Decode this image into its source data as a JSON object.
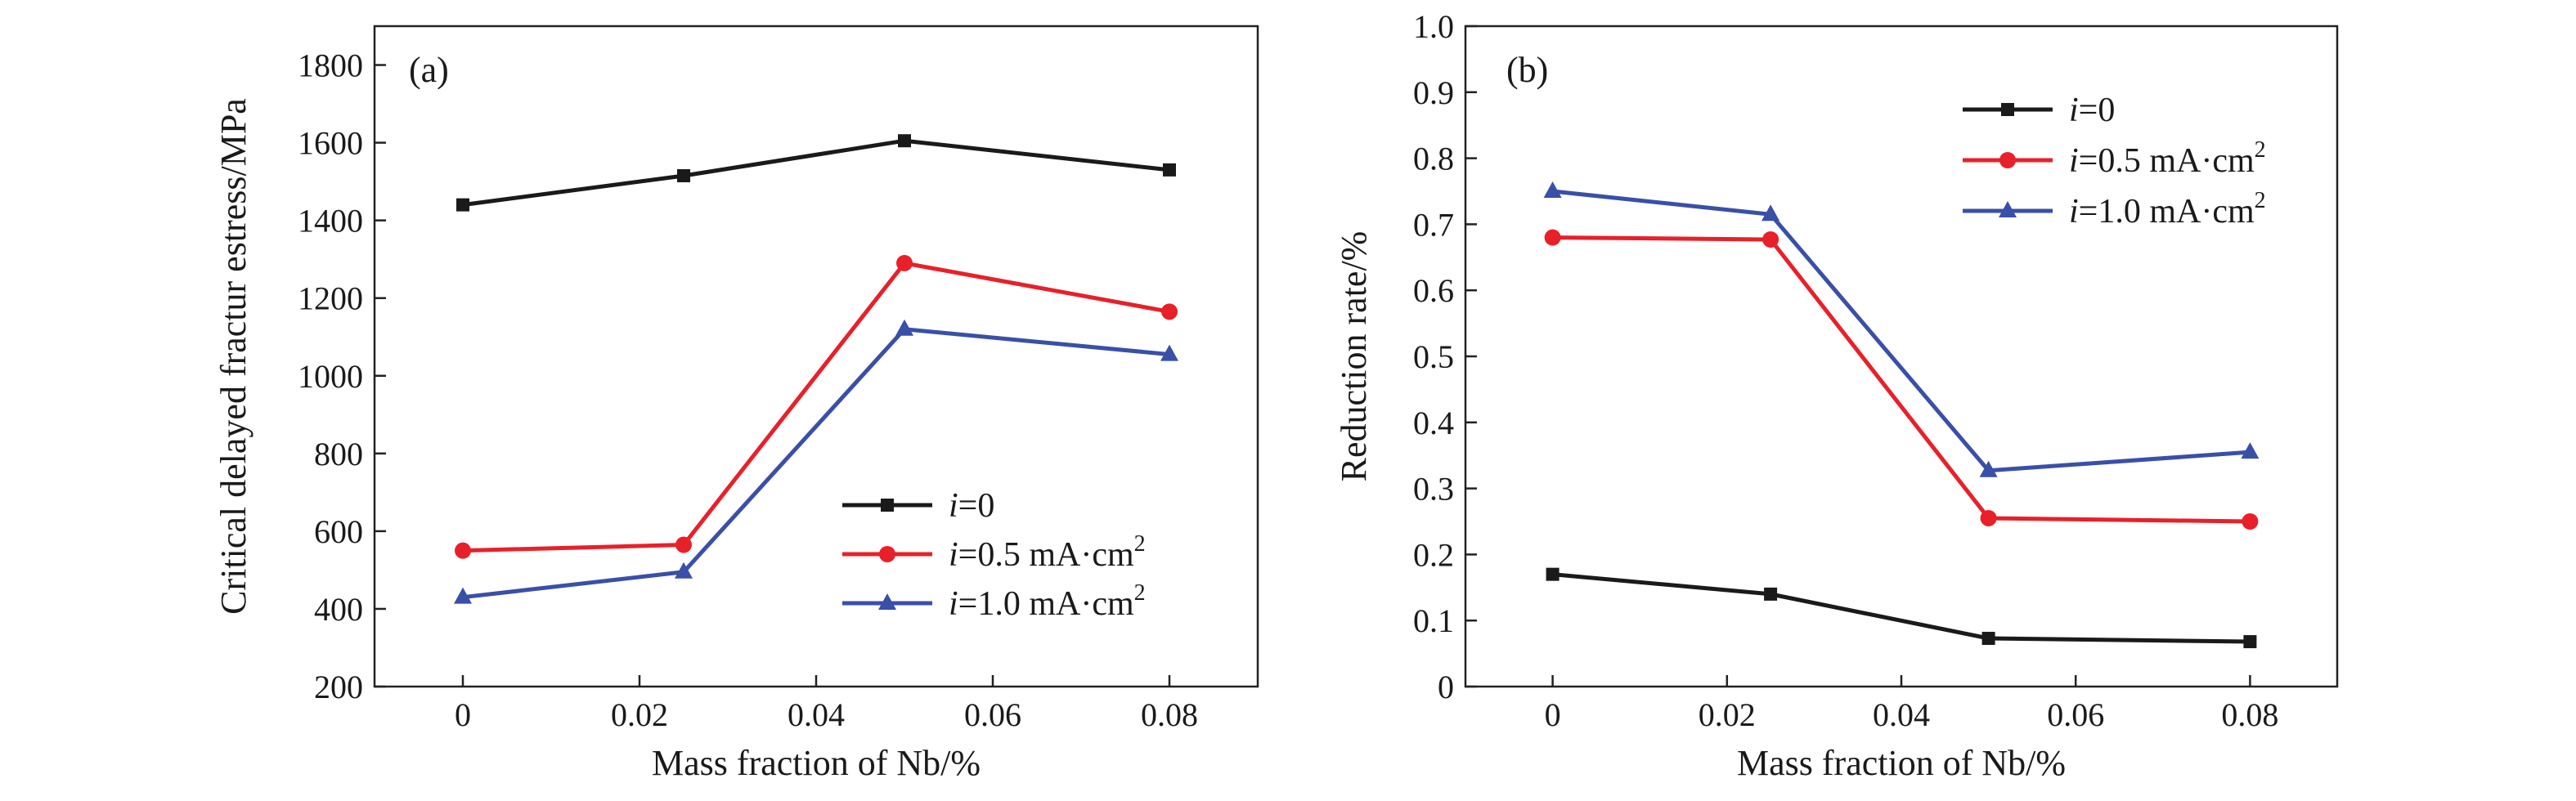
{
  "chart_data": [
    {
      "panel": "(a)",
      "type": "line",
      "xlabel": "Mass fraction of Nb/%",
      "ylabel": "Critical delayed fractur estress/MPa",
      "xlim": [
        -0.01,
        0.09
      ],
      "ylim": [
        200,
        1900
      ],
      "xticks": [
        0,
        0.02,
        0.04,
        0.06,
        0.08
      ],
      "xtick_labels": [
        "0",
        "0.02",
        "0.04",
        "0.06",
        "0.08"
      ],
      "yticks": [
        200,
        400,
        600,
        800,
        1000,
        1200,
        1400,
        1600,
        1800
      ],
      "ytick_labels": [
        "200",
        "400",
        "600",
        "800",
        "1000",
        "1200",
        "1400",
        "1600",
        "1800"
      ],
      "legend_position": "lower-right",
      "grid": false,
      "x": [
        0,
        0.025,
        0.05,
        0.08
      ],
      "series": [
        {
          "name_italic": "i",
          "name_rest": "=0",
          "name_sup": "",
          "marker": "square",
          "color": "#1a1a1a",
          "values": [
            1440,
            1515,
            1605,
            1530
          ]
        },
        {
          "name_italic": "i",
          "name_rest": "=0.5 mA·cm",
          "name_sup": "2",
          "marker": "circle",
          "color": "#e8202a",
          "values": [
            550,
            565,
            1290,
            1165
          ]
        },
        {
          "name_italic": "i",
          "name_rest": "=1.0 mA·cm",
          "name_sup": "2",
          "marker": "triangle",
          "color": "#3a4fa8",
          "values": [
            430,
            495,
            1120,
            1055
          ]
        }
      ]
    },
    {
      "panel": "(b)",
      "type": "line",
      "xlabel": "Mass fraction of Nb/%",
      "ylabel": "Reduction rate/%",
      "xlim": [
        -0.01,
        0.09
      ],
      "ylim": [
        0,
        1.0
      ],
      "xticks": [
        0,
        0.02,
        0.04,
        0.06,
        0.08
      ],
      "xtick_labels": [
        "0",
        "0.02",
        "0.04",
        "0.06",
        "0.08"
      ],
      "yticks": [
        0,
        0.1,
        0.2,
        0.3,
        0.4,
        0.5,
        0.6,
        0.7,
        0.8,
        0.9,
        1.0
      ],
      "ytick_labels": [
        "0",
        "0.1",
        "0.2",
        "0.3",
        "0.4",
        "0.5",
        "0.6",
        "0.7",
        "0.8",
        "0.9",
        "1.0"
      ],
      "legend_position": "upper-right",
      "grid": false,
      "x": [
        0,
        0.025,
        0.05,
        0.08
      ],
      "series": [
        {
          "name_italic": "i",
          "name_rest": "=0",
          "name_sup": "",
          "marker": "square",
          "color": "#1a1a1a",
          "values": [
            0.17,
            0.14,
            0.073,
            0.068
          ]
        },
        {
          "name_italic": "i",
          "name_rest": "=0.5 mA·cm",
          "name_sup": "2",
          "marker": "circle",
          "color": "#e8202a",
          "values": [
            0.68,
            0.677,
            0.255,
            0.25
          ]
        },
        {
          "name_italic": "i",
          "name_rest": "=1.0 mA·cm",
          "name_sup": "2",
          "marker": "triangle",
          "color": "#3a4fa8",
          "values": [
            0.75,
            0.715,
            0.327,
            0.355
          ]
        }
      ]
    }
  ]
}
